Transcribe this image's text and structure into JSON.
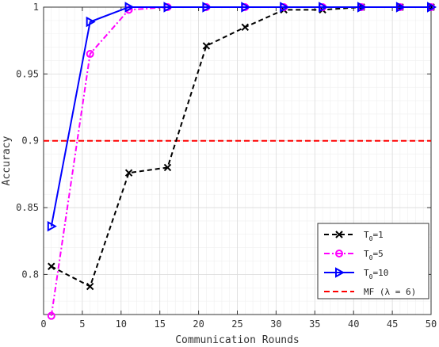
{
  "chart_data": {
    "type": "line",
    "xlabel": "Communication Rounds",
    "ylabel": "Accuracy",
    "xlim": [
      0,
      50
    ],
    "ylim": [
      0.77,
      1.0
    ],
    "x_ticks": [
      "0",
      "5",
      "10",
      "15",
      "20",
      "25",
      "30",
      "35",
      "40",
      "45",
      "50"
    ],
    "y_ticks": [
      "0.8",
      "0.85",
      "0.9",
      "0.95",
      "1"
    ],
    "grid": true,
    "legend_position": "bottom-right",
    "series": [
      {
        "name_parts": {
          "base": "T",
          "sub": "0",
          "tail": "=1"
        },
        "color": "#000000",
        "dash": "6,4",
        "marker": "x",
        "x": [
          1,
          6,
          11,
          16,
          21,
          26,
          31,
          36,
          41,
          46,
          50
        ],
        "y": [
          0.806,
          0.791,
          0.876,
          0.88,
          0.971,
          0.985,
          0.998,
          0.998,
          1.0,
          1.0,
          1.0
        ]
      },
      {
        "name_parts": {
          "base": "T",
          "sub": "0",
          "tail": "=5"
        },
        "color": "#ff00ff",
        "dash": "7,3,2,3",
        "marker": "o",
        "x": [
          1,
          6,
          11,
          16,
          21,
          26,
          31,
          36,
          41,
          46,
          50
        ],
        "y": [
          0.769,
          0.965,
          0.998,
          1.0,
          1.0,
          1.0,
          1.0,
          1.0,
          1.0,
          1.0,
          1.0
        ]
      },
      {
        "name_parts": {
          "base": "T",
          "sub": "0",
          "tail": "=10"
        },
        "color": "#0000ff",
        "dash": "",
        "marker": "triangle-right",
        "x": [
          1,
          6,
          11,
          16,
          21,
          26,
          31,
          36,
          41,
          46,
          50
        ],
        "y": [
          0.836,
          0.989,
          1.0,
          1.0,
          1.0,
          1.0,
          1.0,
          1.0,
          1.0,
          1.0,
          1.0
        ]
      },
      {
        "name": "MF (λ = 6)",
        "color": "#ff0000",
        "dash": "7,4",
        "marker": "none",
        "x": [
          0,
          50
        ],
        "y": [
          0.9,
          0.9
        ]
      }
    ]
  }
}
